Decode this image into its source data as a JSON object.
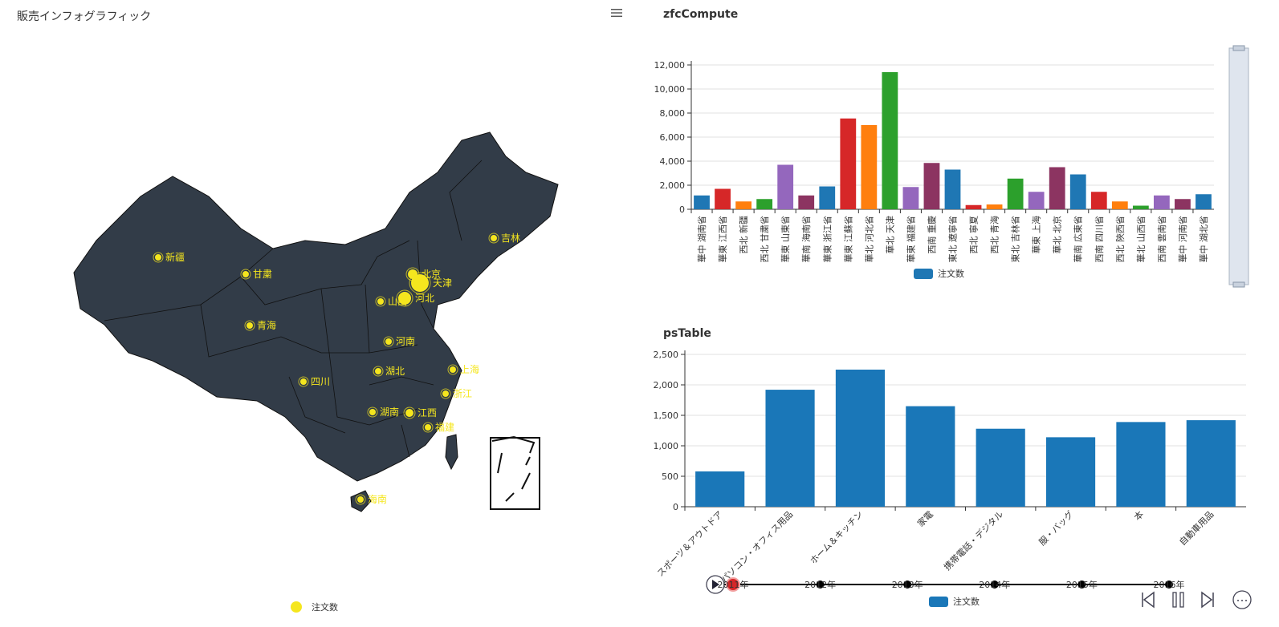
{
  "page": {
    "title": "販売インフォグラフィック"
  },
  "map": {
    "legend_label": "注文数",
    "legend_color": "#f5e61e",
    "land_color": "#323c48",
    "border_color": "#111111",
    "point_color": "#f5e61e",
    "labels": [
      "新疆",
      "甘粛",
      "青海",
      "吉林",
      "北京",
      "天津",
      "山西",
      "河北",
      "河南",
      "湖北",
      "上海",
      "浙江",
      "四川",
      "湖南",
      "江西",
      "福建",
      "海南"
    ]
  },
  "chart_data": [
    {
      "id": "zfc",
      "type": "bar",
      "title": "zfcCompute",
      "legend": "注文数",
      "ylim": [
        0,
        12000
      ],
      "yticks": [
        "0",
        "2,000",
        "4,000",
        "6,000",
        "8,000",
        "10,000",
        "12,000"
      ],
      "grid": true,
      "legend_position": "bottom",
      "categories": [
        "華中 湖南省",
        "華東 江西省",
        "西北 新疆",
        "西北 甘粛省",
        "華東 山東省",
        "華南 海南省",
        "華東 浙江省",
        "華東 江蘇省",
        "華北 河北省",
        "華北 天津",
        "華東 福建省",
        "西南 重慶",
        "東北 遼寧省",
        "西北 寧夏",
        "西北 青海",
        "東北 吉林省",
        "華東 上海",
        "華北 北京",
        "華南 広東省",
        "西南 四川省",
        "西北 陝西省",
        "華北 山西省",
        "西南 雲南省",
        "華中 河南省",
        "華中 湖北省"
      ],
      "values": [
        1150,
        1700,
        650,
        850,
        3700,
        1150,
        1900,
        7550,
        7000,
        11400,
        1850,
        3850,
        3300,
        350,
        400,
        2550,
        1450,
        3500,
        2900,
        1450,
        650,
        300,
        1150,
        850,
        1250
      ],
      "colors": [
        "#1f77b4",
        "#d62728",
        "#ff7f0e",
        "#2ca02c",
        "#9467bd",
        "#8c3461",
        "#1f77b4",
        "#d62728",
        "#ff7f0e",
        "#2ca02c",
        "#9467bd",
        "#8c3461",
        "#1f77b4",
        "#d62728",
        "#ff7f0e",
        "#2ca02c",
        "#9467bd",
        "#8c3461",
        "#1f77b4",
        "#d62728",
        "#ff7f0e",
        "#2ca02c",
        "#9467bd",
        "#8c3461",
        "#1f77b4"
      ]
    },
    {
      "id": "ps",
      "type": "bar",
      "title": "psTable",
      "legend": "注文数",
      "ylim": [
        0,
        2500
      ],
      "yticks": [
        "0",
        "500",
        "1,000",
        "1,500",
        "2,000",
        "2,500"
      ],
      "grid": true,
      "legend_position": "bottom",
      "categories": [
        "スポーツ＆アウトドア",
        "パソコン・オフィス用品",
        "ホーム＆キッチン",
        "家電",
        "携帯電話・デジタル",
        "服・バッグ",
        "本",
        "自動車用品"
      ],
      "values": [
        580,
        1920,
        2250,
        1650,
        1280,
        1140,
        1390,
        1420
      ],
      "color": "#1a77b8"
    }
  ],
  "timeline": {
    "years": [
      "2011年",
      "2012年",
      "2013年",
      "2014年",
      "2015年",
      "2016年"
    ],
    "current_index": 0
  },
  "colors": {
    "bar": "#1a77b8",
    "accent": "#d62728"
  }
}
